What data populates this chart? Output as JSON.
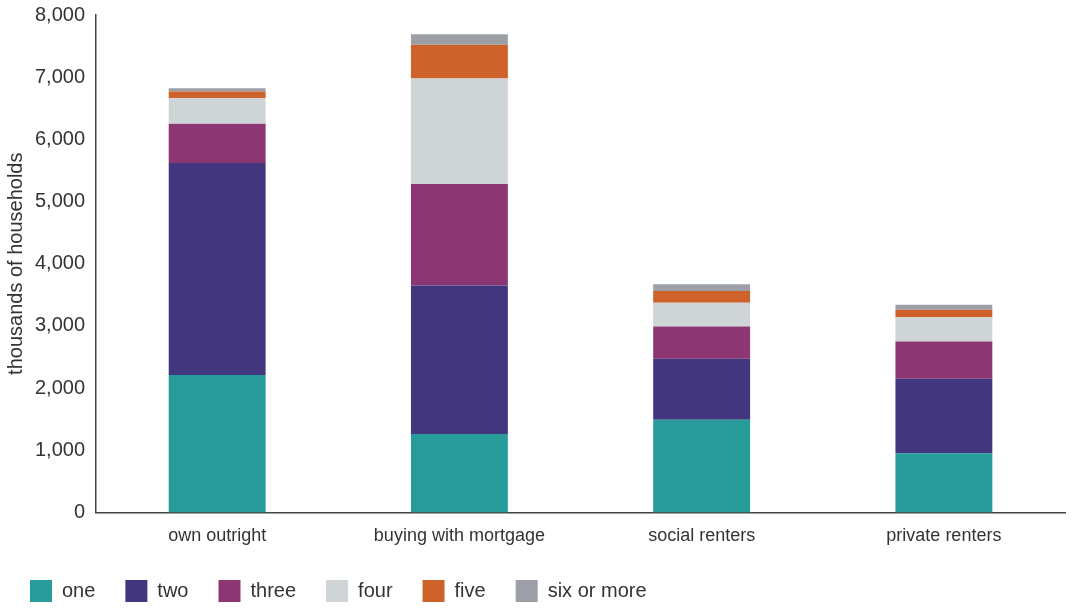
{
  "chart_data": {
    "type": "bar",
    "stacked": true,
    "ylabel": "thousands of households",
    "categories": [
      "own outright",
      "buying with mortgage",
      "social renters",
      "private renters"
    ],
    "series": [
      {
        "name": "one",
        "color": "#269b9a",
        "values": [
          2210,
          1260,
          1490,
          950
        ]
      },
      {
        "name": "two",
        "color": "#42377e",
        "values": [
          3410,
          2390,
          980,
          1200
        ]
      },
      {
        "name": "three",
        "color": "#8c3773",
        "values": [
          630,
          1630,
          520,
          600
        ]
      },
      {
        "name": "four",
        "color": "#cfd4d6",
        "values": [
          410,
          1700,
          380,
          390
        ]
      },
      {
        "name": "five",
        "color": "#cd632a",
        "values": [
          110,
          540,
          190,
          120
        ]
      },
      {
        "name": "six or more",
        "color": "#9ca0a6",
        "values": [
          50,
          170,
          110,
          80
        ]
      }
    ],
    "ylim": [
      0,
      8000
    ],
    "yticks": [
      0,
      {
        "value": 1000,
        "label": "1,000"
      },
      {
        "value": 2000,
        "label": "2,000"
      },
      {
        "value": 3000,
        "label": "3,000"
      },
      {
        "value": 4000,
        "label": "4,000"
      },
      {
        "value": 5000,
        "label": "5,000"
      },
      {
        "value": 6000,
        "label": "6,000"
      },
      {
        "value": 7000,
        "label": "7,000"
      },
      {
        "value": 8000,
        "label": "8,000"
      }
    ],
    "grid": false,
    "legend": "bottom left"
  }
}
